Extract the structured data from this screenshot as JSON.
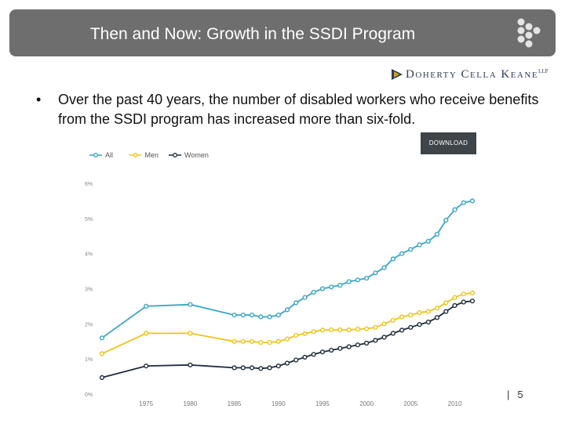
{
  "slide": {
    "title": "Then and Now:  Growth in the SSDI Program",
    "logo_text": "Doherty Cella Keane",
    "logo_suffix": "LLP",
    "bullet_mark": "•",
    "bullet": "Over the past 40 years, the number of disabled workers who receive benefits from the SSDI program has increased more than six-fold.",
    "page_separator": "|",
    "page_number": "5"
  },
  "chart": {
    "download_label": "DOWNLOAD"
  },
  "colors": {
    "title_bar": "#6e6e6e",
    "all": "#3aa5c4",
    "men": "#f0c419",
    "women": "#1f2c3a"
  },
  "chart_data": {
    "type": "line",
    "title": "",
    "xlabel": "",
    "ylabel": "",
    "xlim": [
      1970,
      2012
    ],
    "ylim": [
      0,
      6
    ],
    "yticks": [
      "0%",
      "1%",
      "2%",
      "3%",
      "4%",
      "5%",
      "6%"
    ],
    "xticks": [
      "1975",
      "1980",
      "1985",
      "1990",
      "1995",
      "2000",
      "2005",
      "2010"
    ],
    "grid": false,
    "legend": "top-left",
    "x": [
      1970,
      1975,
      1980,
      1985,
      1986,
      1987,
      1988,
      1989,
      1990,
      1991,
      1992,
      1993,
      1994,
      1995,
      1996,
      1997,
      1998,
      1999,
      2000,
      2001,
      2002,
      2003,
      2004,
      2005,
      2006,
      2007,
      2008,
      2009,
      2010,
      2011,
      2012
    ],
    "series": [
      {
        "name": "All",
        "color": "#3aa5c4",
        "values": [
          1.6,
          2.5,
          2.55,
          2.25,
          2.25,
          2.25,
          2.2,
          2.2,
          2.25,
          2.4,
          2.6,
          2.75,
          2.9,
          3.0,
          3.05,
          3.1,
          3.2,
          3.25,
          3.3,
          3.45,
          3.6,
          3.85,
          4.0,
          4.12,
          4.25,
          4.35,
          4.55,
          4.95,
          5.25,
          5.45,
          5.5
        ]
      },
      {
        "name": "Men",
        "color": "#f0c419",
        "values": [
          1.15,
          1.73,
          1.73,
          1.5,
          1.5,
          1.5,
          1.47,
          1.47,
          1.5,
          1.57,
          1.67,
          1.72,
          1.78,
          1.82,
          1.83,
          1.83,
          1.83,
          1.85,
          1.86,
          1.9,
          2.0,
          2.1,
          2.2,
          2.25,
          2.32,
          2.35,
          2.45,
          2.6,
          2.75,
          2.85,
          2.88
        ]
      },
      {
        "name": "Women",
        "color": "#1f2c3a",
        "values": [
          0.47,
          0.8,
          0.83,
          0.75,
          0.75,
          0.75,
          0.73,
          0.75,
          0.8,
          0.88,
          0.97,
          1.05,
          1.13,
          1.2,
          1.25,
          1.3,
          1.35,
          1.4,
          1.45,
          1.53,
          1.62,
          1.73,
          1.82,
          1.9,
          1.98,
          2.05,
          2.18,
          2.35,
          2.52,
          2.62,
          2.65
        ]
      }
    ]
  }
}
